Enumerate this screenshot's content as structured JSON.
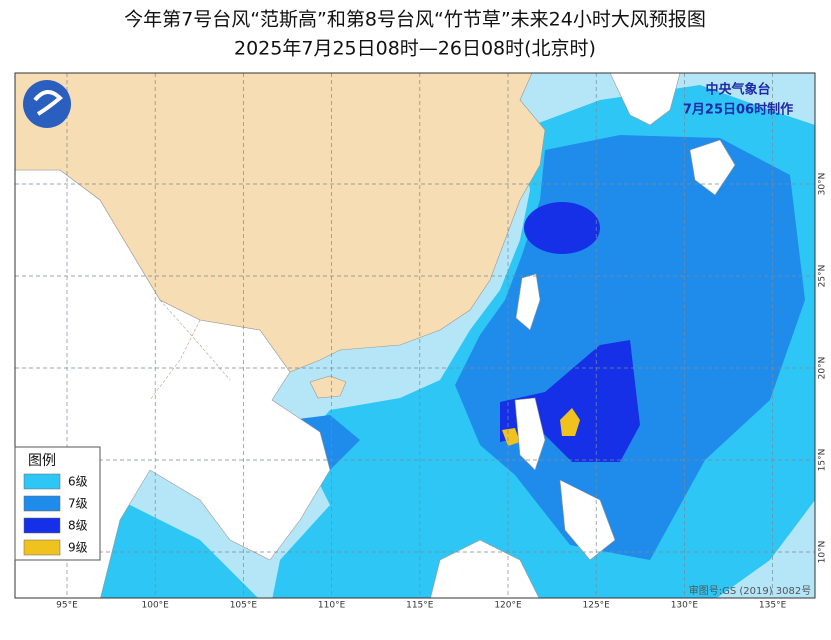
{
  "title": "今年第7号台风“范斯高”和第8号台风“竹节草”未来24小时大风预报图",
  "subtitle": "2025年7月25日08时—26日08时(北京时)",
  "agency": "中央气象台",
  "issued": "7月25日06时制作",
  "legend": {
    "title": "图例",
    "items": [
      {
        "label": "6级",
        "color": "#2ec6f4"
      },
      {
        "label": "7级",
        "color": "#1f8ceb"
      },
      {
        "label": "8级",
        "color": "#1530e6"
      },
      {
        "label": "9级",
        "color": "#f0c21e"
      }
    ]
  },
  "lon_labels": [
    "95°E",
    "100°E",
    "105°E",
    "110°E",
    "115°E",
    "120°E",
    "125°E",
    "130°E",
    "135°E"
  ],
  "lat_labels": [
    "30°N",
    "25°N",
    "20°N",
    "15°N",
    "10°N"
  ],
  "approval": "审图号:GS (2019) 3082号"
}
